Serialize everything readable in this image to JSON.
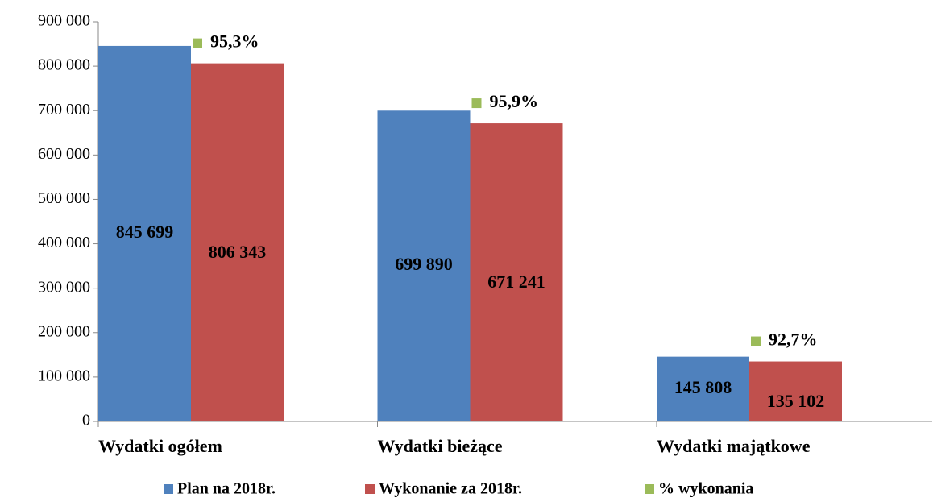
{
  "chart_data": {
    "type": "bar",
    "categories": [
      "Wydatki ogółem",
      "Wydatki bieżące",
      "Wydatki majątkowe"
    ],
    "series": [
      {
        "name": "Plan na 2018r.",
        "color": "#4f81bd",
        "values": [
          845699,
          699890,
          145808
        ],
        "value_labels": [
          "845 699",
          "699 890",
          "145 808"
        ]
      },
      {
        "name": "Wykonanie za 2018r.",
        "color": "#c0504d",
        "values": [
          806343,
          671241,
          135102
        ],
        "value_labels": [
          "806 343",
          "671 241",
          "135 102"
        ]
      },
      {
        "name": "% wykonania",
        "color": "#9bbb59",
        "values": [
          95.3,
          95.9,
          92.7
        ],
        "value_labels": [
          "95,3%",
          "95,9%",
          "92,7%"
        ]
      }
    ],
    "ylim": [
      0,
      900000
    ],
    "yticks": [
      0,
      {
        "value": 100000,
        "label": "100 000"
      },
      {
        "value": 200000,
        "label": "200 000"
      },
      {
        "value": 300000,
        "label": "300 000"
      },
      {
        "value": 400000,
        "label": "400 000"
      },
      {
        "value": 500000,
        "label": "500 000"
      },
      {
        "value": 600000,
        "label": "600 000"
      },
      {
        "value": 700000,
        "label": "700 000"
      },
      {
        "value": 800000,
        "label": "800 000"
      },
      {
        "value": 900000,
        "label": "900 000"
      }
    ],
    "grid": false,
    "legend": "bottom"
  }
}
